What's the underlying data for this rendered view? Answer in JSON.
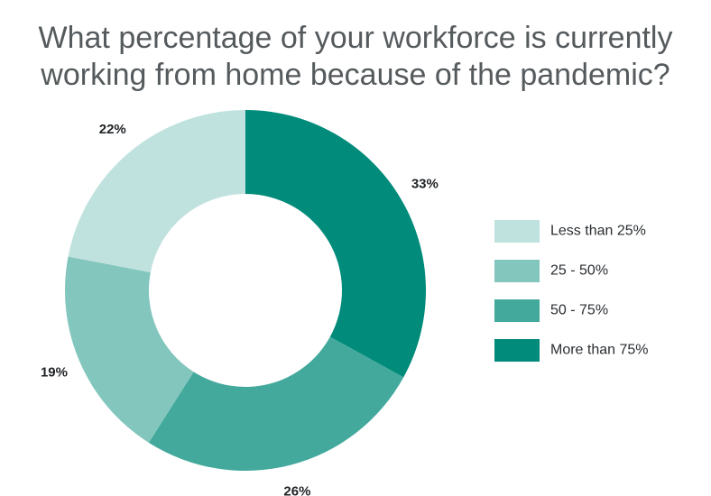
{
  "chart_data": {
    "type": "pie",
    "donut": true,
    "title_lines": [
      "What percentage of your workforce is currently",
      "working from home because of the pandemic?"
    ],
    "categories": [
      "More than 75%",
      "50 - 75%",
      "25 - 50%",
      "Less than 25%"
    ],
    "values": [
      33,
      26,
      19,
      22
    ],
    "value_labels": [
      "33%",
      "26%",
      "19%",
      "22%"
    ],
    "colors": [
      "#008b7a",
      "#43a99d",
      "#82c6bd",
      "#c0e2de"
    ],
    "legend": {
      "placement": "right",
      "order": [
        "Less than 25%",
        "25 - 50%",
        "50 - 75%",
        "More than 75%"
      ]
    }
  }
}
